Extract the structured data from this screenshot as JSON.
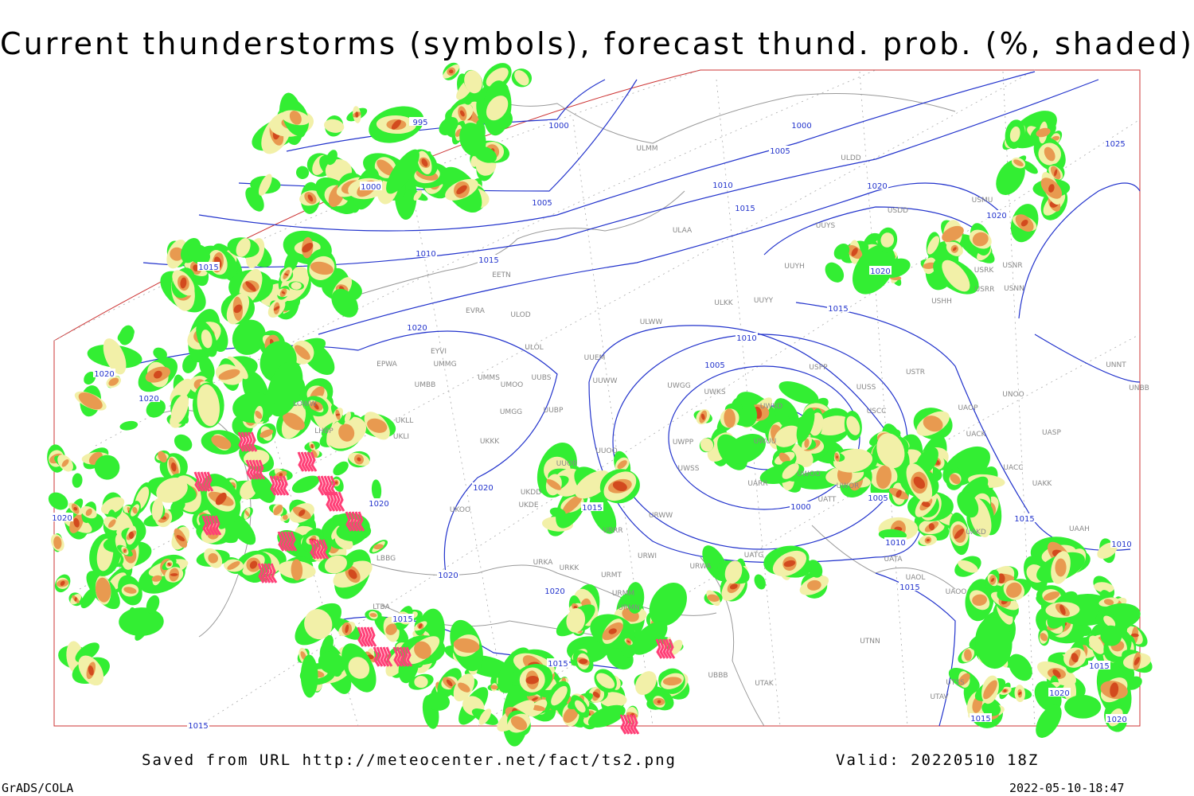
{
  "header": {
    "title": "Current thunderstorms (symbols), forecast thund. prob. (%, shaded)"
  },
  "map": {
    "isobar_labels": [
      995,
      1000,
      1000,
      1005,
      1010,
      1015,
      1015,
      1020,
      1020,
      1020,
      1020,
      1020,
      1020,
      1020,
      1020,
      1015,
      1015,
      1015,
      1015,
      1000,
      1005,
      1010,
      1015,
      1020,
      1020,
      1020,
      1015,
      1010,
      1005,
      1000,
      1005,
      1010,
      1015,
      1015,
      1010,
      1015,
      1020,
      1020,
      1015,
      1025
    ],
    "station_codes": [
      "ULMM",
      "ULDD",
      "USDD",
      "USMU",
      "UUYS",
      "ULAA",
      "UUYH",
      "USRK",
      "USNR",
      "USRR",
      "USNN",
      "USHH",
      "ULKK",
      "UUYY",
      "ULWW",
      "EETN",
      "EVRA",
      "ULOD",
      "EYVI",
      "ULOL",
      "UUEM",
      "EPWA",
      "UMMG",
      "UMMS",
      "UMOO",
      "UUBS",
      "UUWW",
      "UMBB",
      "UUSS",
      "USTR",
      "USPP",
      "UWKS",
      "UWGG",
      "UNOO",
      "UNNT",
      "UNBB",
      "UWKD",
      "USCC",
      "UAOP",
      "UACK",
      "UASP",
      "UUBP",
      "UMGG",
      "LOWW",
      "UKLL",
      "UKLI",
      "UKKK",
      "UWPP",
      "UWUU",
      "LHBP",
      "UUOO",
      "UUOB",
      "UWSS",
      "UACC",
      "UAKK",
      "UKDD",
      "UKDE",
      "UWOO",
      "UWOR",
      "UARR",
      "UATT",
      "UKOO",
      "URWW",
      "URRR",
      "UAKD",
      "UAAH",
      "LBBG",
      "URKA",
      "URKK",
      "URWI",
      "UATG",
      "URWA",
      "UATA",
      "URMT",
      "UAOL",
      "UAOO",
      "URMM",
      "URMN",
      "LTBA",
      "UBBB",
      "UTAK",
      "UTNN",
      "UTSS",
      "UTAV"
    ]
  },
  "footer": {
    "source": "Saved from URL http://meteocenter.net/fact/ts2.png",
    "valid": "Valid: 20220510 18Z",
    "software": "GrADS/COLA",
    "timestamp": "2022-05-10-18:47"
  }
}
